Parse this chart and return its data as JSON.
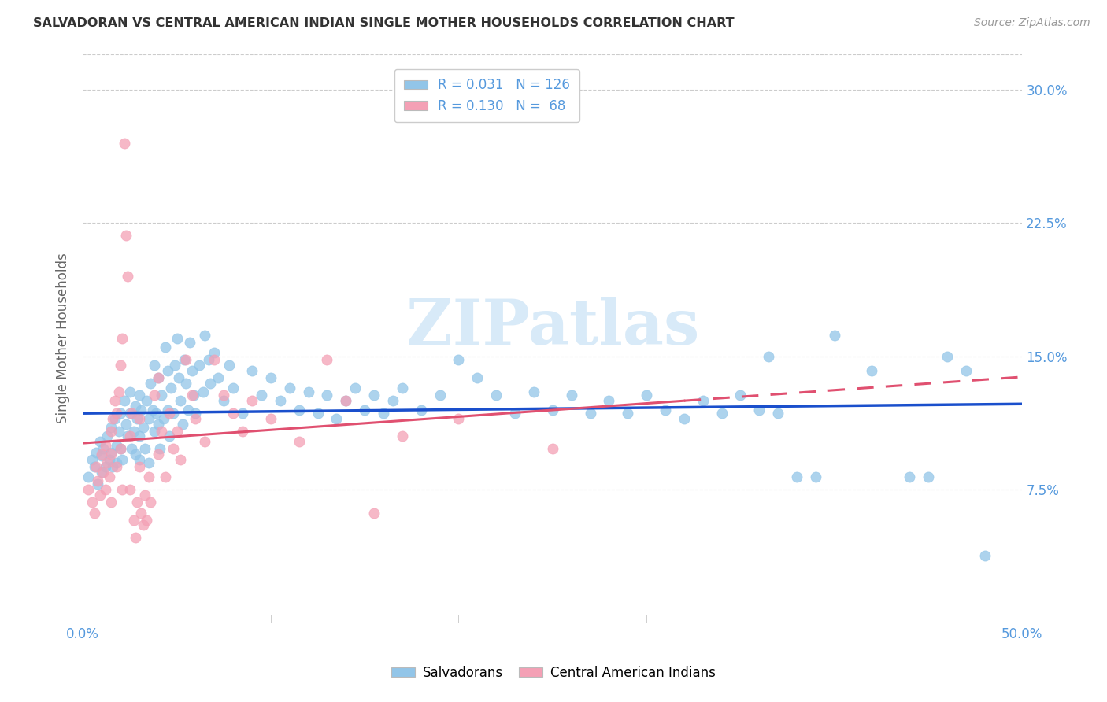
{
  "title": "SALVADORAN VS CENTRAL AMERICAN INDIAN SINGLE MOTHER HOUSEHOLDS CORRELATION CHART",
  "source": "Source: ZipAtlas.com",
  "ylabel": "Single Mother Households",
  "ytick_vals": [
    0.075,
    0.15,
    0.225,
    0.3
  ],
  "ytick_labels": [
    "7.5%",
    "15.0%",
    "22.5%",
    "30.0%"
  ],
  "xlim": [
    0.0,
    0.5
  ],
  "ylim": [
    0.0,
    0.32
  ],
  "legend_r1_text": "R = 0.031   N = 126",
  "legend_r2_text": "R = 0.130   N =  68",
  "legend_label1": "Salvadorans",
  "legend_label2": "Central American Indians",
  "blue_color": "#92C5E8",
  "pink_color": "#F4A0B5",
  "blue_line_color": "#1A4FCC",
  "pink_line_color": "#E05070",
  "title_color": "#333333",
  "source_color": "#999999",
  "axis_color": "#5599DD",
  "watermark_color": "#D8EAF8",
  "grid_color": "#CCCCCC",
  "blue_scatter": [
    [
      0.003,
      0.082
    ],
    [
      0.005,
      0.092
    ],
    [
      0.006,
      0.088
    ],
    [
      0.007,
      0.096
    ],
    [
      0.008,
      0.078
    ],
    [
      0.009,
      0.102
    ],
    [
      0.01,
      0.094
    ],
    [
      0.01,
      0.085
    ],
    [
      0.011,
      0.098
    ],
    [
      0.012,
      0.088
    ],
    [
      0.013,
      0.105
    ],
    [
      0.014,
      0.092
    ],
    [
      0.015,
      0.11
    ],
    [
      0.015,
      0.096
    ],
    [
      0.016,
      0.088
    ],
    [
      0.017,
      0.115
    ],
    [
      0.018,
      0.1
    ],
    [
      0.018,
      0.09
    ],
    [
      0.019,
      0.108
    ],
    [
      0.02,
      0.118
    ],
    [
      0.02,
      0.098
    ],
    [
      0.021,
      0.092
    ],
    [
      0.022,
      0.125
    ],
    [
      0.023,
      0.112
    ],
    [
      0.024,
      0.105
    ],
    [
      0.025,
      0.13
    ],
    [
      0.025,
      0.118
    ],
    [
      0.026,
      0.098
    ],
    [
      0.027,
      0.108
    ],
    [
      0.028,
      0.122
    ],
    [
      0.028,
      0.095
    ],
    [
      0.029,
      0.115
    ],
    [
      0.03,
      0.128
    ],
    [
      0.03,
      0.105
    ],
    [
      0.03,
      0.092
    ],
    [
      0.031,
      0.12
    ],
    [
      0.032,
      0.11
    ],
    [
      0.033,
      0.098
    ],
    [
      0.034,
      0.125
    ],
    [
      0.035,
      0.115
    ],
    [
      0.035,
      0.09
    ],
    [
      0.036,
      0.135
    ],
    [
      0.037,
      0.12
    ],
    [
      0.038,
      0.145
    ],
    [
      0.038,
      0.108
    ],
    [
      0.039,
      0.118
    ],
    [
      0.04,
      0.138
    ],
    [
      0.04,
      0.112
    ],
    [
      0.041,
      0.098
    ],
    [
      0.042,
      0.128
    ],
    [
      0.043,
      0.115
    ],
    [
      0.044,
      0.155
    ],
    [
      0.045,
      0.142
    ],
    [
      0.045,
      0.12
    ],
    [
      0.046,
      0.105
    ],
    [
      0.047,
      0.132
    ],
    [
      0.048,
      0.118
    ],
    [
      0.049,
      0.145
    ],
    [
      0.05,
      0.16
    ],
    [
      0.051,
      0.138
    ],
    [
      0.052,
      0.125
    ],
    [
      0.053,
      0.112
    ],
    [
      0.054,
      0.148
    ],
    [
      0.055,
      0.135
    ],
    [
      0.056,
      0.12
    ],
    [
      0.057,
      0.158
    ],
    [
      0.058,
      0.142
    ],
    [
      0.059,
      0.128
    ],
    [
      0.06,
      0.118
    ],
    [
      0.062,
      0.145
    ],
    [
      0.064,
      0.13
    ],
    [
      0.065,
      0.162
    ],
    [
      0.067,
      0.148
    ],
    [
      0.068,
      0.135
    ],
    [
      0.07,
      0.152
    ],
    [
      0.072,
      0.138
    ],
    [
      0.075,
      0.125
    ],
    [
      0.078,
      0.145
    ],
    [
      0.08,
      0.132
    ],
    [
      0.085,
      0.118
    ],
    [
      0.09,
      0.142
    ],
    [
      0.095,
      0.128
    ],
    [
      0.1,
      0.138
    ],
    [
      0.105,
      0.125
    ],
    [
      0.11,
      0.132
    ],
    [
      0.115,
      0.12
    ],
    [
      0.12,
      0.13
    ],
    [
      0.125,
      0.118
    ],
    [
      0.13,
      0.128
    ],
    [
      0.135,
      0.115
    ],
    [
      0.14,
      0.125
    ],
    [
      0.145,
      0.132
    ],
    [
      0.15,
      0.12
    ],
    [
      0.155,
      0.128
    ],
    [
      0.16,
      0.118
    ],
    [
      0.165,
      0.125
    ],
    [
      0.17,
      0.132
    ],
    [
      0.18,
      0.12
    ],
    [
      0.19,
      0.128
    ],
    [
      0.2,
      0.148
    ],
    [
      0.21,
      0.138
    ],
    [
      0.22,
      0.128
    ],
    [
      0.23,
      0.118
    ],
    [
      0.24,
      0.13
    ],
    [
      0.25,
      0.12
    ],
    [
      0.26,
      0.128
    ],
    [
      0.27,
      0.118
    ],
    [
      0.28,
      0.125
    ],
    [
      0.29,
      0.118
    ],
    [
      0.3,
      0.128
    ],
    [
      0.31,
      0.12
    ],
    [
      0.32,
      0.115
    ],
    [
      0.33,
      0.125
    ],
    [
      0.34,
      0.118
    ],
    [
      0.35,
      0.128
    ],
    [
      0.36,
      0.12
    ],
    [
      0.365,
      0.15
    ],
    [
      0.37,
      0.118
    ],
    [
      0.38,
      0.082
    ],
    [
      0.39,
      0.082
    ],
    [
      0.4,
      0.162
    ],
    [
      0.42,
      0.142
    ],
    [
      0.44,
      0.082
    ],
    [
      0.45,
      0.082
    ],
    [
      0.46,
      0.15
    ],
    [
      0.47,
      0.142
    ],
    [
      0.48,
      0.038
    ]
  ],
  "pink_scatter": [
    [
      0.003,
      0.075
    ],
    [
      0.005,
      0.068
    ],
    [
      0.006,
      0.062
    ],
    [
      0.007,
      0.088
    ],
    [
      0.008,
      0.08
    ],
    [
      0.009,
      0.072
    ],
    [
      0.01,
      0.095
    ],
    [
      0.011,
      0.085
    ],
    [
      0.012,
      0.1
    ],
    [
      0.012,
      0.075
    ],
    [
      0.013,
      0.09
    ],
    [
      0.014,
      0.082
    ],
    [
      0.015,
      0.108
    ],
    [
      0.015,
      0.095
    ],
    [
      0.015,
      0.068
    ],
    [
      0.016,
      0.115
    ],
    [
      0.017,
      0.125
    ],
    [
      0.018,
      0.118
    ],
    [
      0.018,
      0.088
    ],
    [
      0.019,
      0.13
    ],
    [
      0.02,
      0.145
    ],
    [
      0.02,
      0.098
    ],
    [
      0.021,
      0.16
    ],
    [
      0.021,
      0.075
    ],
    [
      0.022,
      0.27
    ],
    [
      0.023,
      0.218
    ],
    [
      0.024,
      0.195
    ],
    [
      0.025,
      0.105
    ],
    [
      0.025,
      0.075
    ],
    [
      0.026,
      0.118
    ],
    [
      0.027,
      0.058
    ],
    [
      0.028,
      0.048
    ],
    [
      0.029,
      0.068
    ],
    [
      0.03,
      0.115
    ],
    [
      0.03,
      0.088
    ],
    [
      0.031,
      0.062
    ],
    [
      0.032,
      0.055
    ],
    [
      0.033,
      0.072
    ],
    [
      0.034,
      0.058
    ],
    [
      0.035,
      0.082
    ],
    [
      0.036,
      0.068
    ],
    [
      0.038,
      0.128
    ],
    [
      0.04,
      0.138
    ],
    [
      0.04,
      0.095
    ],
    [
      0.042,
      0.108
    ],
    [
      0.044,
      0.082
    ],
    [
      0.046,
      0.118
    ],
    [
      0.048,
      0.098
    ],
    [
      0.05,
      0.108
    ],
    [
      0.052,
      0.092
    ],
    [
      0.055,
      0.148
    ],
    [
      0.058,
      0.128
    ],
    [
      0.06,
      0.115
    ],
    [
      0.065,
      0.102
    ],
    [
      0.07,
      0.148
    ],
    [
      0.075,
      0.128
    ],
    [
      0.08,
      0.118
    ],
    [
      0.085,
      0.108
    ],
    [
      0.09,
      0.125
    ],
    [
      0.1,
      0.115
    ],
    [
      0.115,
      0.102
    ],
    [
      0.13,
      0.148
    ],
    [
      0.14,
      0.125
    ],
    [
      0.155,
      0.062
    ],
    [
      0.17,
      0.105
    ],
    [
      0.2,
      0.115
    ],
    [
      0.25,
      0.098
    ]
  ]
}
